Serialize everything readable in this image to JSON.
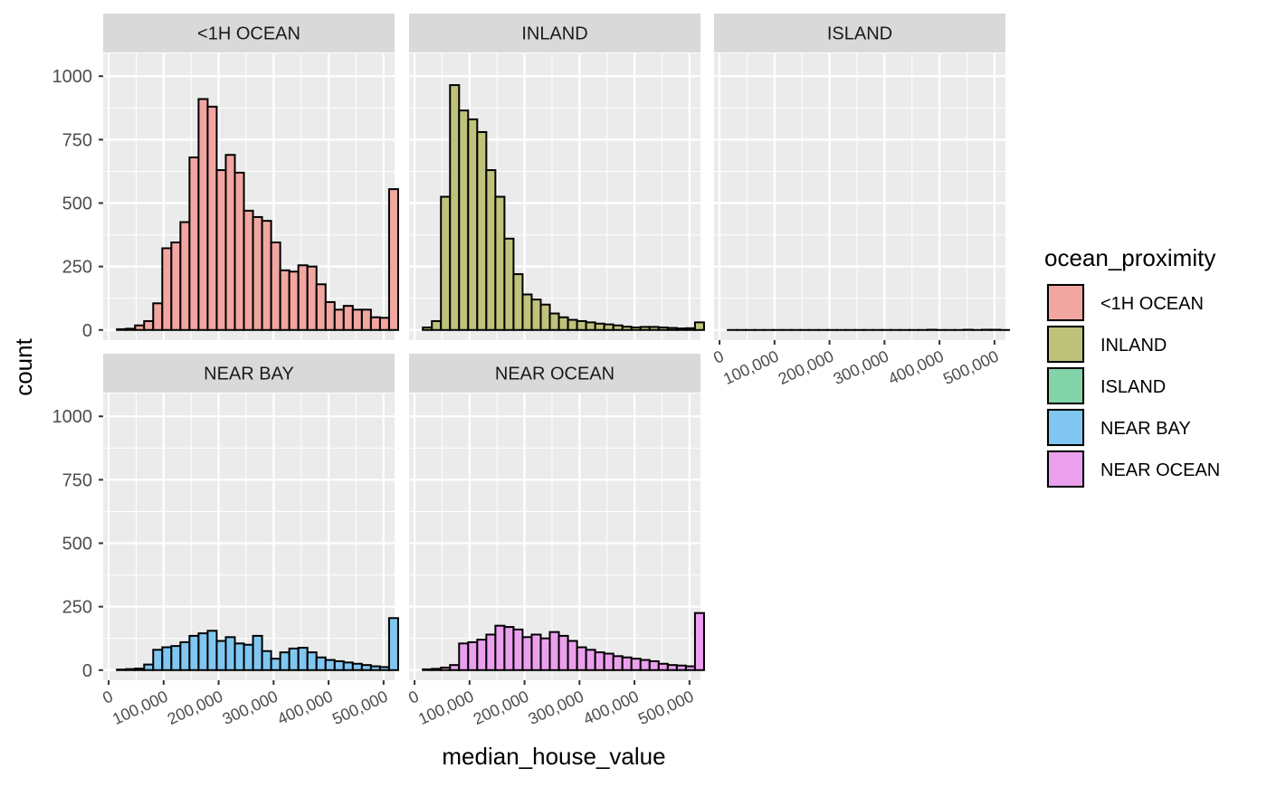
{
  "chart_data": {
    "type": "bar",
    "title": "",
    "xlabel": "median_house_value",
    "ylabel": "count",
    "ylim": [
      -40,
      1090
    ],
    "xlim": [
      -10000,
      520000
    ],
    "yticks": [
      0,
      250,
      500,
      750,
      1000
    ],
    "ytick_labels": [
      "0",
      "250",
      "500",
      "750",
      "1000"
    ],
    "xticks": [
      0,
      100000,
      200000,
      300000,
      400000,
      500000
    ],
    "xtick_labels": [
      "0",
      "100,000",
      "200,000",
      "300,000",
      "400,000",
      "500,000"
    ],
    "bin_start": 15000,
    "bin_width": 16500,
    "grid": true,
    "legend": {
      "title": "ocean_proximity",
      "position": "right",
      "entries": [
        {
          "label": "<1H OCEAN",
          "color": "#F2A6A1"
        },
        {
          "label": "INLAND",
          "color": "#BFC27A"
        },
        {
          "label": "ISLAND",
          "color": "#84D4A9"
        },
        {
          "label": "NEAR BAY",
          "color": "#80C6F1"
        },
        {
          "label": "NEAR OCEAN",
          "color": "#EBA0EE"
        }
      ]
    },
    "series": [
      {
        "name": "<1H OCEAN",
        "color": "#F2A6A1",
        "values": [
          3,
          5,
          18,
          35,
          105,
          322,
          345,
          425,
          680,
          910,
          880,
          630,
          690,
          620,
          470,
          445,
          430,
          345,
          235,
          230,
          255,
          250,
          180,
          110,
          80,
          95,
          80,
          80,
          50,
          48,
          555
        ]
      },
      {
        "name": "INLAND",
        "color": "#BFC27A",
        "values": [
          10,
          35,
          525,
          965,
          865,
          830,
          780,
          630,
          525,
          360,
          220,
          140,
          120,
          100,
          65,
          50,
          40,
          35,
          30,
          25,
          22,
          18,
          13,
          10,
          12,
          12,
          10,
          8,
          6,
          7,
          30
        ]
      },
      {
        "name": "ISLAND",
        "color": "#84D4A9",
        "values": [
          0,
          0,
          0,
          0,
          0,
          0,
          0,
          0,
          0,
          0,
          0,
          0,
          0,
          0,
          0,
          0,
          0,
          0,
          0,
          0,
          0,
          0,
          1,
          0,
          0,
          0,
          1,
          0,
          1,
          1,
          0
        ]
      },
      {
        "name": "NEAR BAY",
        "color": "#80C6F1",
        "values": [
          2,
          4,
          6,
          22,
          80,
          90,
          95,
          110,
          135,
          145,
          155,
          115,
          130,
          105,
          100,
          135,
          75,
          45,
          70,
          85,
          88,
          70,
          50,
          40,
          35,
          30,
          25,
          20,
          15,
          12,
          205
        ]
      },
      {
        "name": "NEAR OCEAN",
        "color": "#EBA0EE",
        "values": [
          3,
          5,
          10,
          20,
          105,
          110,
          120,
          140,
          175,
          170,
          160,
          130,
          140,
          125,
          150,
          135,
          115,
          90,
          80,
          70,
          65,
          55,
          50,
          45,
          40,
          35,
          25,
          20,
          18,
          15,
          225
        ]
      }
    ],
    "panels": [
      {
        "strip": "<1H OCEAN",
        "series_index": 0,
        "show_y": true,
        "show_x": false
      },
      {
        "strip": "INLAND",
        "series_index": 1,
        "show_y": false,
        "show_x": false
      },
      {
        "strip": "ISLAND",
        "series_index": 2,
        "show_y": false,
        "show_x": true
      },
      {
        "strip": "NEAR BAY",
        "series_index": 3,
        "show_y": true,
        "show_x": true
      },
      {
        "strip": "NEAR OCEAN",
        "series_index": 4,
        "show_y": false,
        "show_x": true
      }
    ]
  }
}
